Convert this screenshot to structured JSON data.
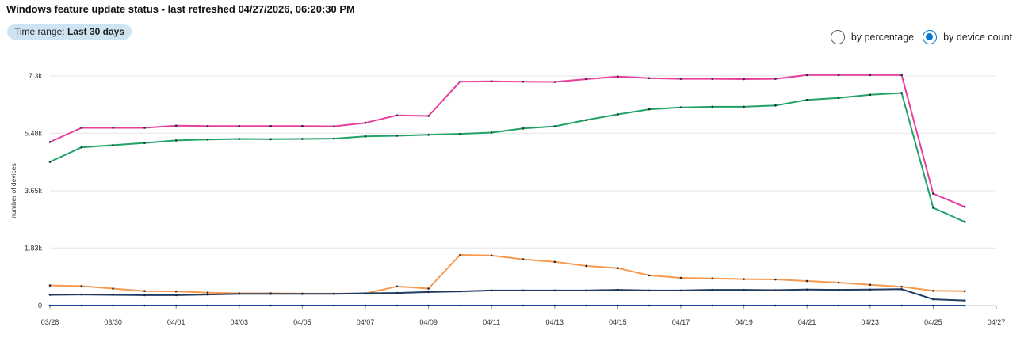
{
  "header": {
    "title": "Windows feature update status - last refreshed 04/27/2026, 06:20:30 PM",
    "time_range_label": "Time range:",
    "time_range_value": "Last 30 days"
  },
  "mode": {
    "options": [
      {
        "label": "by percentage",
        "selected": false
      },
      {
        "label": "by device count",
        "selected": true
      }
    ]
  },
  "chart_data": {
    "type": "line",
    "ylabel": "number of devices",
    "ylim": [
      0,
      7300
    ],
    "yticks": [
      0,
      1830,
      3650,
      5480,
      7300
    ],
    "ytick_labels": [
      "0",
      "1.83k",
      "3.65k",
      "5.48k",
      "7.3k"
    ],
    "xtick_labels": [
      "03/28",
      "03/30",
      "04/01",
      "04/03",
      "04/05",
      "04/07",
      "04/09",
      "04/11",
      "04/13",
      "04/15",
      "04/17",
      "04/19",
      "04/21",
      "04/23",
      "04/25",
      "04/27"
    ],
    "x": [
      "03/28",
      "03/29",
      "03/30",
      "03/31",
      "04/01",
      "04/02",
      "04/03",
      "04/04",
      "04/05",
      "04/06",
      "04/07",
      "04/08",
      "04/09",
      "04/10",
      "04/11",
      "04/12",
      "04/13",
      "04/14",
      "04/15",
      "04/16",
      "04/17",
      "04/18",
      "04/19",
      "04/20",
      "04/21",
      "04/22",
      "04/23",
      "04/24",
      "04/25",
      "04/26"
    ],
    "grid": true,
    "series": [
      {
        "color": "#e83e9e",
        "values": [
          5200,
          5650,
          5650,
          5650,
          5720,
          5710,
          5710,
          5710,
          5710,
          5700,
          5810,
          6050,
          6030,
          7120,
          7130,
          7120,
          7110,
          7200,
          7280,
          7230,
          7210,
          7210,
          7200,
          7210,
          7330,
          7330,
          7330,
          7330,
          3560,
          3140
        ]
      },
      {
        "color": "#21a366",
        "values": [
          4570,
          5030,
          5100,
          5170,
          5250,
          5280,
          5300,
          5290,
          5300,
          5310,
          5380,
          5400,
          5430,
          5460,
          5500,
          5630,
          5700,
          5900,
          6080,
          6240,
          6300,
          6320,
          6320,
          6360,
          6540,
          6600,
          6700,
          6760,
          3110,
          2660
        ]
      },
      {
        "color": "#f79a4f",
        "values": [
          640,
          620,
          540,
          460,
          450,
          410,
          390,
          390,
          380,
          380,
          380,
          610,
          540,
          1610,
          1590,
          1470,
          1390,
          1260,
          1190,
          960,
          880,
          860,
          840,
          830,
          780,
          730,
          660,
          600,
          470,
          460
        ]
      },
      {
        "color": "#213b63",
        "values": [
          340,
          350,
          340,
          330,
          330,
          350,
          370,
          370,
          370,
          370,
          390,
          400,
          430,
          450,
          480,
          480,
          480,
          480,
          500,
          480,
          480,
          500,
          500,
          490,
          510,
          500,
          510,
          520,
          200,
          160
        ]
      },
      {
        "color": "#1f4e9c",
        "values": [
          0,
          0,
          0,
          0,
          0,
          0,
          0,
          0,
          0,
          0,
          0,
          0,
          0,
          0,
          0,
          0,
          0,
          0,
          0,
          0,
          0,
          0,
          0,
          0,
          0,
          0,
          0,
          0,
          0,
          0
        ]
      }
    ]
  }
}
